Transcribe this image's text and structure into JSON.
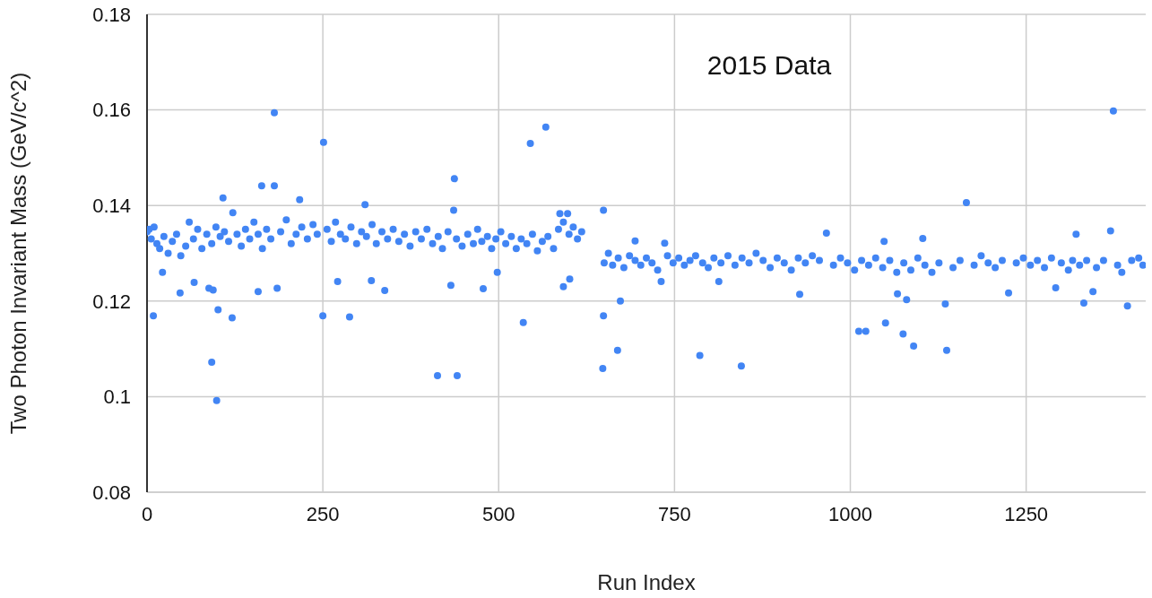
{
  "chart_data": {
    "type": "scatter",
    "title": "2015 Data",
    "xlabel": "Run Index",
    "ylabel": "Two Photon Invariant Mass (GeV/c^2)",
    "xlim": [
      0,
      1420
    ],
    "xticks": [
      0,
      250,
      500,
      750,
      1000,
      1250
    ],
    "ylim": [
      0.08,
      0.18
    ],
    "yticks": [
      0.08,
      0.1,
      0.12,
      0.14,
      0.16,
      0.18
    ],
    "grid": true,
    "marker": "circle",
    "series": [
      {
        "color": "#4285f4",
        "x": [
          0,
          3,
          6,
          10,
          14,
          18,
          24,
          30,
          36,
          42,
          48,
          55,
          60,
          66,
          72,
          78,
          85,
          92,
          98,
          104,
          110,
          116,
          122,
          128,
          134,
          140,
          146,
          152,
          158,
          164,
          170,
          176,
          190,
          198,
          205,
          212,
          220,
          228,
          236,
          242,
          256,
          262,
          268,
          275,
          282,
          290,
          298,
          305,
          312,
          320,
          326,
          334,
          342,
          350,
          358,
          366,
          374,
          382,
          390,
          398,
          406,
          414,
          420,
          428,
          440,
          448,
          456,
          464,
          470,
          476,
          484,
          490,
          496,
          503,
          510,
          518,
          525,
          532,
          540,
          548,
          555,
          562,
          570,
          578,
          585,
          592,
          600,
          606,
          612,
          618,
          650,
          656,
          662,
          670,
          678,
          686,
          694,
          702,
          710,
          718,
          726,
          740,
          748,
          756,
          764,
          772,
          780,
          790,
          798,
          806,
          816,
          826,
          836,
          846,
          856,
          866,
          876,
          886,
          896,
          906,
          916,
          926,
          936,
          946,
          956,
          976,
          986,
          996,
          1006,
          1016,
          1026,
          1036,
          1046,
          1056,
          1066,
          1076,
          1086,
          1096,
          1106,
          1116,
          1126,
          1146,
          1156,
          1176,
          1186,
          1196,
          1206,
          1216,
          1236,
          1246,
          1256,
          1266,
          1276,
          1286,
          1300,
          1310,
          1316,
          1326,
          1336,
          1350,
          1360,
          1380,
          1386,
          1400,
          1410,
          1416,
          181,
          251,
          163,
          181,
          108,
          217,
          310,
          9,
          101,
          121,
          250,
          288,
          92,
          99,
          47,
          22,
          67,
          88,
          94,
          158,
          185,
          271,
          319,
          338,
          567,
          545,
          437,
          436,
          413,
          441,
          432,
          478,
          535,
          498,
          592,
          601,
          587,
          598,
          649,
          649,
          673,
          669,
          648,
          966,
          786,
          845,
          928,
          1012,
          1022,
          1050,
          731,
          813,
          694,
          736,
          1048,
          1374,
          1165,
          1370,
          1321,
          1103,
          1075,
          1090,
          1137,
          1135,
          1225,
          1332,
          1394,
          1345,
          1292,
          1067,
          1080
        ],
        "values": [
          0.1345,
          0.135,
          0.133,
          0.1355,
          0.132,
          0.131,
          0.1335,
          0.13,
          0.1325,
          0.134,
          0.1295,
          0.1315,
          0.1365,
          0.133,
          0.135,
          0.131,
          0.134,
          0.132,
          0.1355,
          0.1335,
          0.1345,
          0.1325,
          0.1385,
          0.134,
          0.1315,
          0.135,
          0.133,
          0.1365,
          0.134,
          0.131,
          0.135,
          0.133,
          0.1345,
          0.137,
          0.132,
          0.134,
          0.1355,
          0.133,
          0.136,
          0.134,
          0.135,
          0.1325,
          0.1365,
          0.134,
          0.133,
          0.1355,
          0.132,
          0.1345,
          0.1335,
          0.136,
          0.132,
          0.1345,
          0.133,
          0.135,
          0.1325,
          0.134,
          0.1315,
          0.1345,
          0.133,
          0.135,
          0.132,
          0.1335,
          0.131,
          0.1345,
          0.133,
          0.1315,
          0.134,
          0.132,
          0.135,
          0.1325,
          0.1335,
          0.131,
          0.133,
          0.1345,
          0.132,
          0.1335,
          0.131,
          0.133,
          0.132,
          0.134,
          0.1305,
          0.1325,
          0.1335,
          0.131,
          0.135,
          0.1365,
          0.134,
          0.1355,
          0.133,
          0.1345,
          0.128,
          0.13,
          0.1275,
          0.129,
          0.127,
          0.1295,
          0.1285,
          0.1275,
          0.129,
          0.128,
          0.1265,
          0.1295,
          0.128,
          0.129,
          0.1275,
          0.1285,
          0.1295,
          0.128,
          0.127,
          0.129,
          0.128,
          0.1295,
          0.1275,
          0.129,
          0.128,
          0.13,
          0.1285,
          0.127,
          0.129,
          0.128,
          0.1265,
          0.129,
          0.128,
          0.1295,
          0.1285,
          0.1275,
          0.129,
          0.128,
          0.1265,
          0.1285,
          0.1275,
          0.129,
          0.127,
          0.1285,
          0.126,
          0.128,
          0.1265,
          0.129,
          0.1275,
          0.126,
          0.128,
          0.127,
          0.1285,
          0.1275,
          0.1295,
          0.128,
          0.127,
          0.1285,
          0.128,
          0.129,
          0.1275,
          0.1285,
          0.127,
          0.129,
          0.128,
          0.1265,
          0.1285,
          0.1275,
          0.1285,
          0.127,
          0.1285,
          0.1275,
          0.126,
          0.1285,
          0.129,
          0.1275,
          0.1594,
          0.1532,
          0.1441,
          0.1441,
          0.1416,
          0.1412,
          0.1402,
          0.1169,
          0.1182,
          0.1165,
          0.1169,
          0.1167,
          0.1072,
          0.0992,
          0.1217,
          0.126,
          0.1239,
          0.1227,
          0.1223,
          0.122,
          0.1227,
          0.1241,
          0.1243,
          0.1222,
          0.1564,
          0.153,
          0.1456,
          0.139,
          0.1044,
          0.1044,
          0.1233,
          0.1226,
          0.1155,
          0.126,
          0.123,
          0.1246,
          0.1383,
          0.1383,
          0.139,
          0.1169,
          0.12,
          0.1097,
          0.1059,
          0.1342,
          0.1086,
          0.1064,
          0.1214,
          0.1137,
          0.1137,
          0.1154,
          0.1241,
          0.1241,
          0.1326,
          0.1321,
          0.1325,
          0.1598,
          0.1406,
          0.1347,
          0.134,
          0.1331,
          0.1131,
          0.1106,
          0.1097,
          0.1194,
          0.1217,
          0.1196,
          0.119,
          0.122,
          0.1228,
          0.1215,
          0.1203
        ]
      }
    ]
  }
}
